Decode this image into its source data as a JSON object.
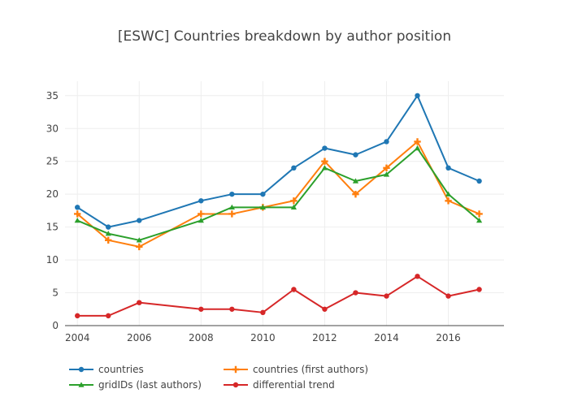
{
  "chart_data": {
    "type": "line",
    "title": "[ESWC] Countries breakdown by author position",
    "xlabel": "",
    "ylabel": "",
    "x": [
      2004,
      2005,
      2006,
      2008,
      2009,
      2010,
      2011,
      2012,
      2013,
      2014,
      2015,
      2016,
      2017
    ],
    "xlim": [
      2003.6,
      2017.8
    ],
    "ylim": [
      0,
      37.2
    ],
    "x_ticks": [
      2004,
      2006,
      2008,
      2010,
      2012,
      2014,
      2016
    ],
    "y_ticks": [
      0,
      5,
      10,
      15,
      20,
      25,
      30,
      35
    ],
    "grid": true,
    "legend_position": "bottom",
    "series": [
      {
        "name": "countries",
        "color": "#1f77b4",
        "marker": "circle",
        "values": [
          18,
          15,
          16,
          19,
          20,
          20,
          24,
          27,
          26,
          28,
          35,
          24,
          22
        ]
      },
      {
        "name": "countries (first authors)",
        "color": "#ff7f0e",
        "marker": "cross",
        "values": [
          17,
          13,
          12,
          17,
          17,
          18,
          19,
          25,
          20,
          24,
          28,
          19,
          17
        ]
      },
      {
        "name": "gridIDs (last authors)",
        "color": "#2ca02c",
        "marker": "triangle-up",
        "values": [
          16,
          14,
          13,
          16,
          18,
          18,
          18,
          24,
          22,
          23,
          27,
          20,
          16
        ]
      },
      {
        "name": "differential trend",
        "color": "#d62728",
        "marker": "circle",
        "values": [
          1.5,
          1.5,
          3.5,
          2.5,
          2.5,
          2,
          5.5,
          2.5,
          5,
          4.5,
          7.5,
          4.5,
          5.5
        ]
      }
    ]
  }
}
